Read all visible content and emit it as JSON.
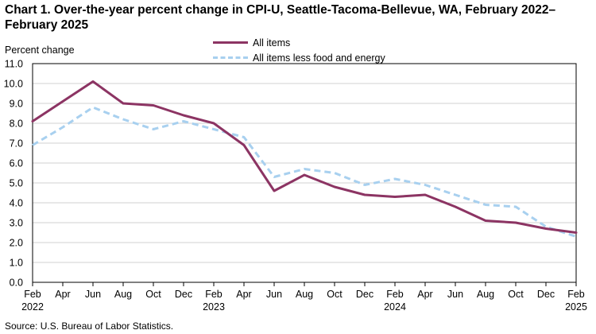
{
  "chart_data": {
    "type": "line",
    "title": "Chart 1. Over-the-year percent change in CPI-U, Seattle-Tacoma-Bellevue,  WA, February 2022–February 2025",
    "ylabel": "Percent change",
    "xlabel": "",
    "ylim": [
      0,
      11
    ],
    "yticks": [
      "0.0",
      "1.0",
      "2.0",
      "3.0",
      "4.0",
      "5.0",
      "6.0",
      "7.0",
      "8.0",
      "9.0",
      "10.0",
      "11.0"
    ],
    "grid": true,
    "legend_position": "top",
    "x": [
      "Feb 2022",
      "Apr 2022",
      "Jun 2022",
      "Aug 2022",
      "Oct 2022",
      "Dec 2022",
      "Feb 2023",
      "Apr 2023",
      "Jun 2023",
      "Aug 2023",
      "Oct 2023",
      "Dec 2023",
      "Feb 2024",
      "Apr 2024",
      "Jun 2024",
      "Aug 2024",
      "Oct 2024",
      "Dec 2024",
      "Feb 2025"
    ],
    "xtick_months": [
      "Feb",
      "Apr",
      "Jun",
      "Aug",
      "Oct",
      "Dec",
      "Feb",
      "Apr",
      "Jun",
      "Aug",
      "Oct",
      "Dec",
      "Feb",
      "Apr",
      "Jun",
      "Aug",
      "Oct",
      "Dec",
      "Feb"
    ],
    "xtick_years": [
      "2022",
      "",
      "",
      "",
      "",
      "",
      "2023",
      "",
      "",
      "",
      "",
      "",
      "2024",
      "",
      "",
      "",
      "",
      "",
      "2025"
    ],
    "series": [
      {
        "name": "All items",
        "color": "#8c3463",
        "style": "solid",
        "values": [
          8.1,
          9.1,
          10.1,
          9.0,
          8.9,
          8.4,
          8.0,
          6.9,
          4.6,
          5.4,
          4.8,
          4.4,
          4.3,
          4.4,
          3.8,
          3.1,
          3.0,
          2.7,
          2.5
        ]
      },
      {
        "name": "All items less food and energy",
        "color": "#a8d0ef",
        "style": "dashed",
        "values": [
          6.9,
          7.8,
          8.8,
          8.2,
          7.7,
          8.1,
          7.7,
          7.3,
          5.3,
          5.7,
          5.5,
          4.9,
          5.2,
          4.9,
          4.4,
          3.9,
          3.8,
          2.8,
          2.3
        ]
      }
    ],
    "source": "Source: U.S. Bureau of Labor Statistics."
  }
}
